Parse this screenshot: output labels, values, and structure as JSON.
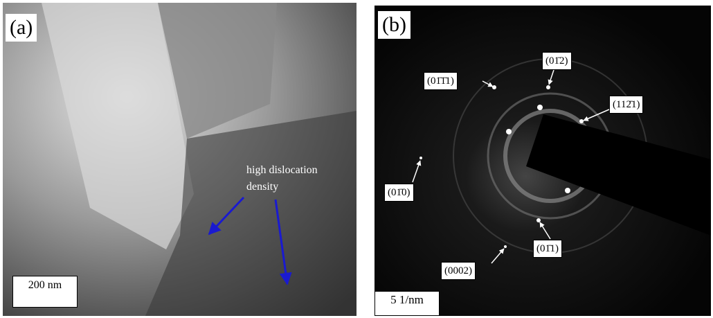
{
  "panels": [
    {
      "label": "(a)",
      "scale_bar": "200 nm",
      "annotation": "high dislocation density"
    },
    {
      "label": "(b)",
      "scale_bar": "5 1/nm",
      "spots": [
        "(01̄1̄​1)",
        "(01̄2)",
        "(112̄1)",
        "(01̄0)",
        "(01̄1)",
        "(0002)"
      ]
    }
  ]
}
